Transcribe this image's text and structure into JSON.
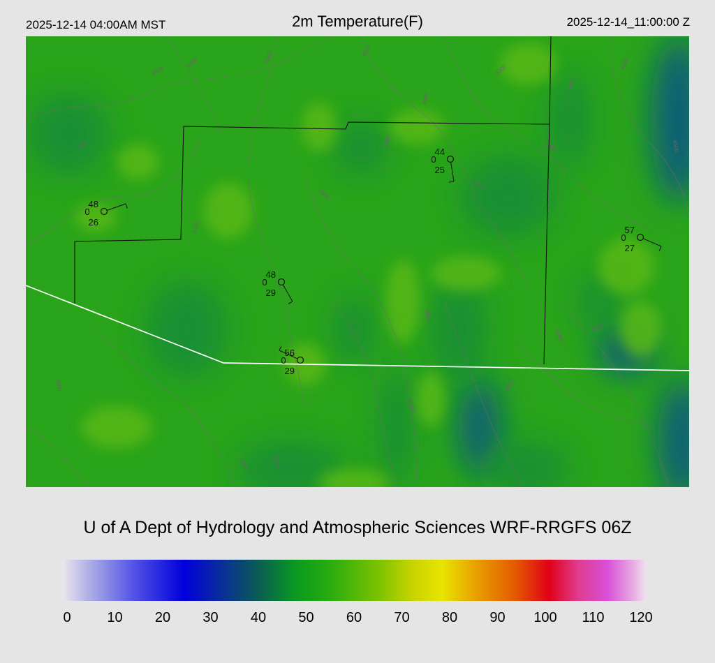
{
  "header": {
    "local_time": "2025-12-14 04:00AM MST",
    "title": "2m Temperature(F)",
    "utc_time": "2025-12-14_11:00:00 Z"
  },
  "credit": "U of A Dept of Hydrology and Atmospheric Sciences WRF-RRGFS 06Z",
  "legend": {
    "ticks": [
      "0",
      "10",
      "20",
      "30",
      "40",
      "50",
      "60",
      "70",
      "80",
      "90",
      "100",
      "110",
      "120"
    ],
    "stops": [
      {
        "v": 0,
        "c": "#ebe6ee"
      },
      {
        "v": 5,
        "c": "#b4b4e6"
      },
      {
        "v": 15,
        "c": "#5050e6"
      },
      {
        "v": 25,
        "c": "#0000dc"
      },
      {
        "v": 32,
        "c": "#0a2aa0"
      },
      {
        "v": 40,
        "c": "#0a5a55"
      },
      {
        "v": 48,
        "c": "#0a9a20"
      },
      {
        "v": 55,
        "c": "#2aac10"
      },
      {
        "v": 65,
        "c": "#7cc200"
      },
      {
        "v": 72,
        "c": "#c8d400"
      },
      {
        "v": 78,
        "c": "#e8e400"
      },
      {
        "v": 85,
        "c": "#e8a000"
      },
      {
        "v": 93,
        "c": "#e45a00"
      },
      {
        "v": 100,
        "c": "#e00018"
      },
      {
        "v": 106,
        "c": "#e03c90"
      },
      {
        "v": 112,
        "c": "#d850d8"
      },
      {
        "v": 117,
        "c": "#e6a8e0"
      },
      {
        "v": 120,
        "c": "#efe4ee"
      }
    ]
  },
  "map": {
    "field_colors": {
      "base": "#2aa41a",
      "warm": "#58b818",
      "cool": "#138c38",
      "cold": "#0e5f76"
    },
    "stations": [
      {
        "temp": "48",
        "dew": "26",
        "code": "0"
      },
      {
        "temp": "44",
        "dew": "25",
        "code": "0"
      },
      {
        "temp": "48",
        "dew": "29",
        "code": "0"
      },
      {
        "temp": "56",
        "dew": "29",
        "code": "0"
      },
      {
        "temp": "57",
        "dew": "27",
        "code": "0"
      }
    ],
    "contour_labels": [
      "4000",
      "4500",
      "5000",
      "5500",
      "4500",
      "4000",
      "4500",
      "5000",
      "5000",
      "4000",
      "4500",
      "5000",
      "4500",
      "4000",
      "5500",
      "5000",
      "5000",
      "4500",
      "4000",
      "5000",
      "4500",
      "5000",
      "4000"
    ]
  }
}
